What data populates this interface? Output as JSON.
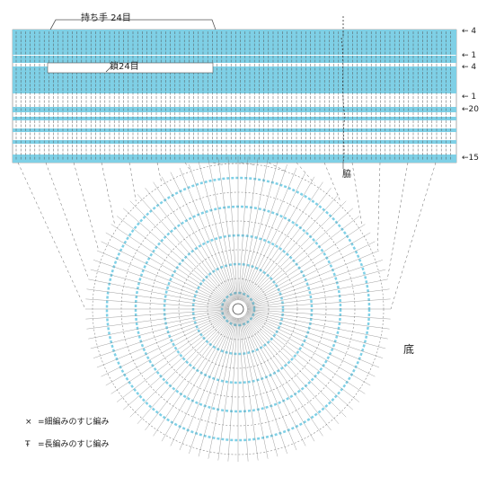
{
  "labels": {
    "handle": "持ち手 24目",
    "chain": "鎖24目",
    "side": "脇",
    "bottom": "底"
  },
  "row_labels": [
    "← 4",
    "← 1",
    "← 4",
    "← 1",
    "←20",
    "←15"
  ],
  "legend": [
    {
      "symbol": "×",
      "text": "=細編みのすじ編み",
      "icon": "single-crochet-back-loop-icon"
    },
    {
      "symbol": "Ŧ",
      "text": "=長編みのすじ編み",
      "icon": "double-crochet-back-loop-icon"
    }
  ],
  "colors": {
    "accent": "#7fd0e6",
    "line": "#555555",
    "text": "#222222",
    "background": "#ffffff"
  }
}
